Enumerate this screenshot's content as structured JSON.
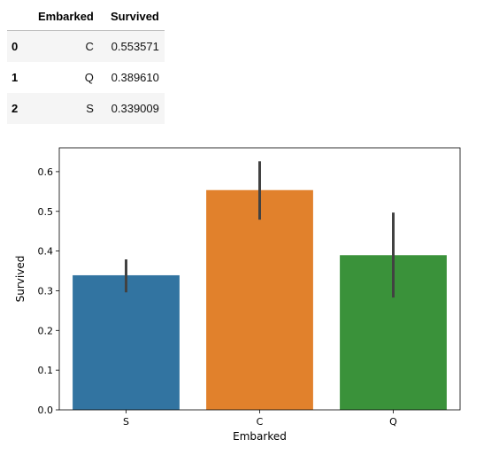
{
  "table": {
    "headers": [
      "",
      "Embarked",
      "Survived"
    ],
    "rows": [
      {
        "index": "0",
        "embarked": "C",
        "survived": "0.553571"
      },
      {
        "index": "1",
        "embarked": "Q",
        "survived": "0.389610"
      },
      {
        "index": "2",
        "embarked": "S",
        "survived": "0.339009"
      }
    ]
  },
  "chart_data": {
    "type": "bar",
    "categories": [
      "S",
      "C",
      "Q"
    ],
    "values": [
      0.339009,
      0.553571,
      0.38961
    ],
    "error_low": [
      0.296,
      0.479,
      0.283
    ],
    "error_high": [
      0.379,
      0.626,
      0.497
    ],
    "colors": [
      "#3274a1",
      "#e1812c",
      "#3a923a"
    ],
    "error_color": "#424242",
    "xlabel": "Embarked",
    "ylabel": "Survived",
    "ylim": [
      0.0,
      0.66
    ],
    "yticks": [
      "0.0",
      "0.1",
      "0.2",
      "0.3",
      "0.4",
      "0.5",
      "0.6"
    ],
    "ytick_values": [
      0.0,
      0.1,
      0.2,
      0.3,
      0.4,
      0.5,
      0.6
    ],
    "grid": false,
    "legend": "none"
  }
}
